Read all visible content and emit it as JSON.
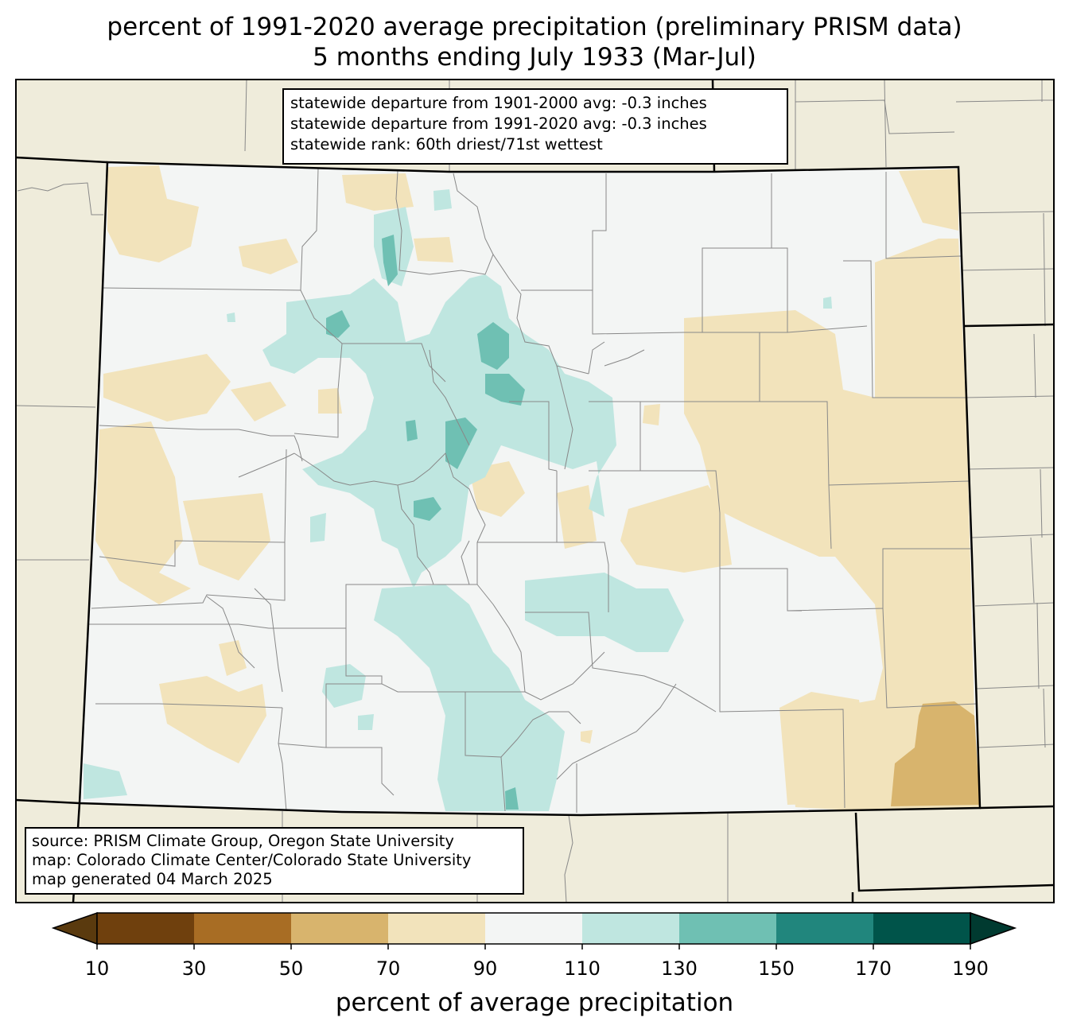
{
  "title": {
    "line1": "percent of 1991-2020 average precipitation (preliminary PRISM data)",
    "line2": "5 months ending July 1933 (Mar-Jul)"
  },
  "stats_box": {
    "line1": "statewide departure from 1901-2000 avg: -0.3 inches",
    "line2": "statewide departure from 1991-2020 avg: -0.3 inches",
    "line3": "statewide rank: 60th driest/71st wettest"
  },
  "source_box": {
    "line1": "source: PRISM Climate Group, Oregon State University",
    "line2": "map: Colorado Climate Center/Colorado State University",
    "line3": "map generated 04 March 2025"
  },
  "colorbar": {
    "title": "percent of average precipitation",
    "ticks": [
      "10",
      "30",
      "50",
      "70",
      "90",
      "110",
      "130",
      "150",
      "170",
      "190"
    ],
    "colors": {
      "under": "#5a3a0e",
      "bins": [
        "#6f400d",
        "#a86d24",
        "#d8b46d",
        "#f2e3bb",
        "#f3f5f4",
        "#bfe6e0",
        "#6fc0b3",
        "#21867d",
        "#00544a"
      ],
      "over": "#003a30"
    }
  },
  "map_colors": {
    "background_land": "#efecdb",
    "state_fill": "#f3f5f4",
    "dry_70_90": "#f2e3bb",
    "dry_50_70": "#d8b46d",
    "wet_110_130": "#bfe6e0",
    "wet_130_150": "#6fc0b3",
    "wet_150_170": "#21867d",
    "county_line": "#888888",
    "state_border": "#000000"
  }
}
